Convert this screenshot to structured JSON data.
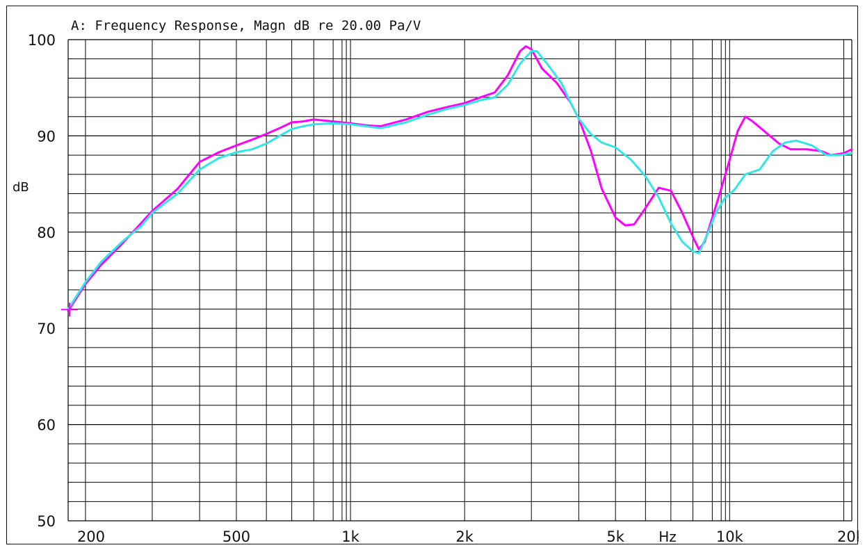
{
  "chart_data": {
    "type": "line",
    "title": "A: Frequency Response, Magn dB re 20.00 Pa/V",
    "xlabel": "Hz",
    "ylabel": "dB",
    "xscale": "log",
    "xlim": [
      180,
      21000
    ],
    "ylim": [
      50,
      100
    ],
    "y_ticks": [
      {
        "value": 100,
        "label": "100"
      },
      {
        "value": 90,
        "label": "90"
      },
      {
        "value": 80,
        "label": "80"
      },
      {
        "value": 70,
        "label": "70"
      },
      {
        "value": 60,
        "label": "60"
      },
      {
        "value": 50,
        "label": "50"
      }
    ],
    "x_ticks": [
      {
        "value": 200,
        "label": "200"
      },
      {
        "value": 500,
        "label": "500"
      },
      {
        "value": 1000,
        "label": "1k"
      },
      {
        "value": 2000,
        "label": "2k"
      },
      {
        "value": 5000,
        "label": "5k"
      },
      {
        "value": 10000,
        "label": "10k"
      },
      {
        "value": 20000,
        "label": "20k"
      }
    ],
    "grid": true,
    "series": [
      {
        "color": "#ff00ff",
        "points": [
          [
            180,
            71.8
          ],
          [
            200,
            74.6
          ],
          [
            220,
            76.6
          ],
          [
            250,
            78.8
          ],
          [
            280,
            80.9
          ],
          [
            300,
            82.2
          ],
          [
            350,
            84.5
          ],
          [
            400,
            87.3
          ],
          [
            450,
            88.3
          ],
          [
            500,
            89.0
          ],
          [
            550,
            89.6
          ],
          [
            600,
            90.2
          ],
          [
            650,
            90.8
          ],
          [
            700,
            91.4
          ],
          [
            750,
            91.5
          ],
          [
            800,
            91.7
          ],
          [
            900,
            91.5
          ],
          [
            1000,
            91.3
          ],
          [
            1100,
            91.1
          ],
          [
            1200,
            91.0
          ],
          [
            1400,
            91.7
          ],
          [
            1600,
            92.5
          ],
          [
            1800,
            93.0
          ],
          [
            2000,
            93.4
          ],
          [
            2200,
            94.0
          ],
          [
            2400,
            94.5
          ],
          [
            2600,
            96.3
          ],
          [
            2800,
            98.8
          ],
          [
            2900,
            99.3
          ],
          [
            3000,
            99.0
          ],
          [
            3200,
            97.0
          ],
          [
            3500,
            95.5
          ],
          [
            3800,
            93.5
          ],
          [
            4000,
            91.8
          ],
          [
            4300,
            88.5
          ],
          [
            4600,
            84.5
          ],
          [
            5000,
            81.5
          ],
          [
            5300,
            80.7
          ],
          [
            5600,
            80.8
          ],
          [
            6000,
            82.5
          ],
          [
            6500,
            84.6
          ],
          [
            7000,
            84.3
          ],
          [
            7500,
            82.0
          ],
          [
            8000,
            79.5
          ],
          [
            8300,
            78.2
          ],
          [
            8600,
            79.0
          ],
          [
            9000,
            81.5
          ],
          [
            9500,
            84.5
          ],
          [
            10000,
            87.5
          ],
          [
            10500,
            90.5
          ],
          [
            11000,
            92.0
          ],
          [
            11500,
            91.5
          ],
          [
            12500,
            90.3
          ],
          [
            13500,
            89.2
          ],
          [
            14500,
            88.6
          ],
          [
            16000,
            88.6
          ],
          [
            17500,
            88.4
          ],
          [
            18500,
            88.0
          ],
          [
            20000,
            88.2
          ],
          [
            21000,
            88.6
          ]
        ]
      },
      {
        "color": "#33e6e6",
        "points": [
          [
            180,
            72.0
          ],
          [
            200,
            74.8
          ],
          [
            220,
            76.9
          ],
          [
            250,
            79.0
          ],
          [
            280,
            80.6
          ],
          [
            300,
            82.0
          ],
          [
            350,
            84.0
          ],
          [
            400,
            86.5
          ],
          [
            450,
            87.7
          ],
          [
            500,
            88.3
          ],
          [
            550,
            88.6
          ],
          [
            600,
            89.2
          ],
          [
            650,
            90.0
          ],
          [
            700,
            90.7
          ],
          [
            750,
            91.0
          ],
          [
            800,
            91.2
          ],
          [
            900,
            91.3
          ],
          [
            1000,
            91.2
          ],
          [
            1100,
            91.0
          ],
          [
            1200,
            90.8
          ],
          [
            1400,
            91.4
          ],
          [
            1600,
            92.2
          ],
          [
            1800,
            92.8
          ],
          [
            2000,
            93.2
          ],
          [
            2200,
            93.7
          ],
          [
            2400,
            94.0
          ],
          [
            2600,
            95.3
          ],
          [
            2800,
            97.5
          ],
          [
            3000,
            98.8
          ],
          [
            3100,
            98.8
          ],
          [
            3300,
            97.5
          ],
          [
            3600,
            95.5
          ],
          [
            3800,
            93.5
          ],
          [
            4000,
            91.8
          ],
          [
            4300,
            90.2
          ],
          [
            4600,
            89.3
          ],
          [
            5000,
            88.8
          ],
          [
            5500,
            87.5
          ],
          [
            6000,
            85.8
          ],
          [
            6500,
            83.6
          ],
          [
            7000,
            80.9
          ],
          [
            7500,
            79.0
          ],
          [
            8000,
            78.0
          ],
          [
            8300,
            77.8
          ],
          [
            8700,
            79.6
          ],
          [
            9200,
            82.0
          ],
          [
            9700,
            83.5
          ],
          [
            10300,
            84.4
          ],
          [
            11000,
            86.0
          ],
          [
            12000,
            86.5
          ],
          [
            13000,
            88.4
          ],
          [
            14000,
            89.3
          ],
          [
            15000,
            89.5
          ],
          [
            16500,
            89.0
          ],
          [
            18000,
            88.0
          ],
          [
            19500,
            88.0
          ],
          [
            21000,
            88.2
          ]
        ]
      }
    ]
  }
}
